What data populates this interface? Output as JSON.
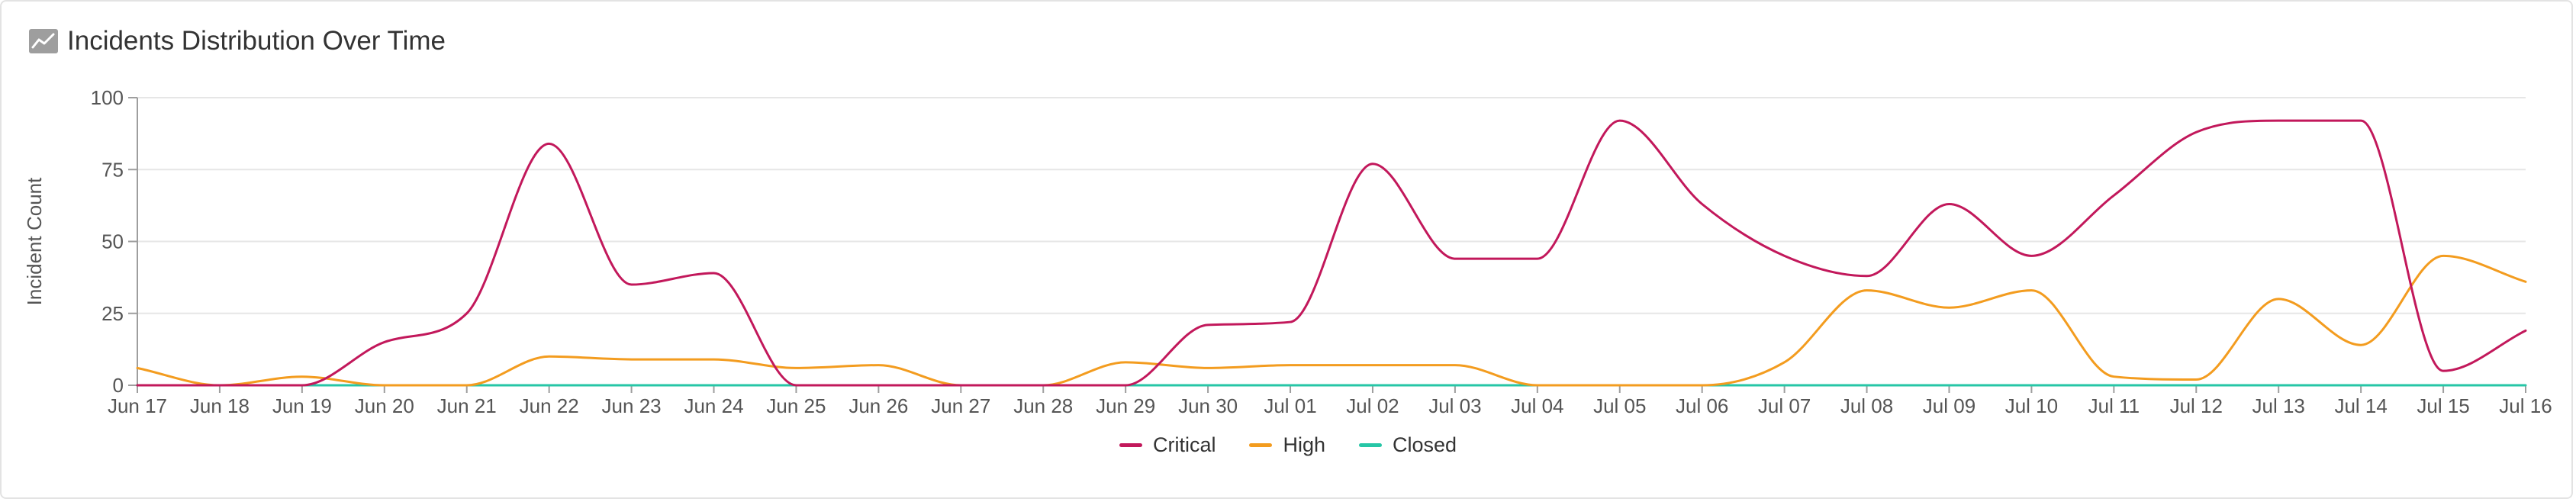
{
  "panel": {
    "title": "Incidents Distribution Over Time",
    "icon": "line-chart-icon"
  },
  "chart_data": {
    "type": "line",
    "title": "Incidents Distribution Over Time",
    "xlabel": "",
    "ylabel": "Incident Count",
    "ylim": [
      0,
      100
    ],
    "yticks": [
      0,
      25,
      50,
      75,
      100
    ],
    "grid": true,
    "legend_position": "bottom-center",
    "x": [
      "Jun 17",
      "Jun 18",
      "Jun 19",
      "Jun 20",
      "Jun 21",
      "Jun 22",
      "Jun 23",
      "Jun 24",
      "Jun 25",
      "Jun 26",
      "Jun 27",
      "Jun 28",
      "Jun 29",
      "Jun 30",
      "Jul 01",
      "Jul 02",
      "Jul 03",
      "Jul 04",
      "Jul 05",
      "Jul 06",
      "Jul 07",
      "Jul 08",
      "Jul 09",
      "Jul 10",
      "Jul 11",
      "Jul 12",
      "Jul 13",
      "Jul 14",
      "Jul 15",
      "Jul 16"
    ],
    "series": [
      {
        "name": "Critical",
        "color": "#c2185b",
        "values": [
          0,
          0,
          0,
          15,
          25,
          84,
          35,
          39,
          0,
          0,
          0,
          0,
          0,
          21,
          22,
          77,
          44,
          44,
          92,
          63,
          45,
          38,
          63,
          45,
          66,
          88,
          92,
          92,
          5,
          19
        ]
      },
      {
        "name": "High",
        "color": "#f39c1f",
        "values": [
          6,
          0,
          3,
          0,
          0,
          10,
          9,
          9,
          6,
          7,
          0,
          0,
          8,
          6,
          7,
          7,
          7,
          0,
          0,
          0,
          8,
          33,
          27,
          33,
          3,
          2,
          30,
          14,
          45,
          36
        ]
      },
      {
        "name": "Closed",
        "color": "#26c6a6",
        "values": [
          0,
          0,
          0,
          0,
          0,
          0,
          0,
          0,
          0,
          0,
          0,
          0,
          0,
          0,
          0,
          0,
          0,
          0,
          0,
          0,
          0,
          0,
          0,
          0,
          0,
          0,
          0,
          0,
          0,
          0
        ]
      }
    ]
  }
}
